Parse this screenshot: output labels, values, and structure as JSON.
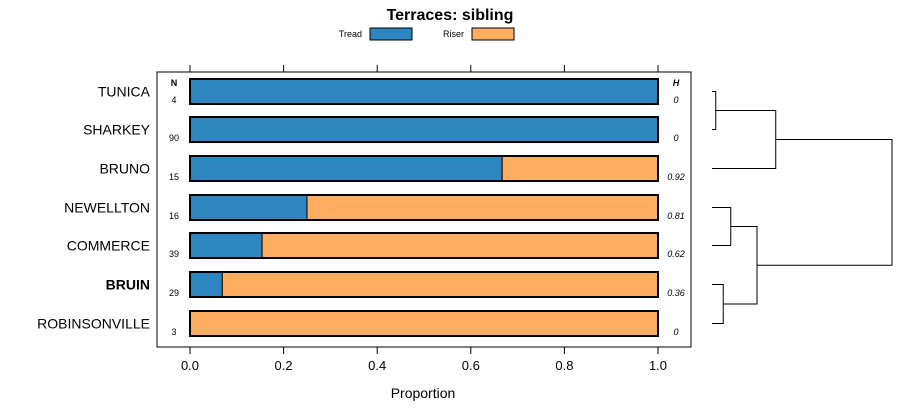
{
  "chart_data": {
    "type": "bar",
    "stacked": true,
    "orientation": "horizontal",
    "title": "Terraces: sibling",
    "xlabel": "Proportion",
    "xlim": [
      0,
      1
    ],
    "xticks": [
      "0.0",
      "0.2",
      "0.4",
      "0.6",
      "0.8",
      "1.0"
    ],
    "xtick_values": [
      0,
      0.2,
      0.4,
      0.6,
      0.8,
      1.0
    ],
    "n_header": "N",
    "h_header": "H",
    "legend": [
      {
        "name": "Tread",
        "color": "#2e86c1"
      },
      {
        "name": "Riser",
        "color": "#fdae61"
      }
    ],
    "categories": [
      "TUNICA",
      "SHARKEY",
      "BRUNO",
      "NEWELLTON",
      "COMMERCE",
      "BRUIN",
      "ROBINSONVILLE"
    ],
    "bold_category": "BRUIN",
    "n": [
      "4",
      "90",
      "15",
      "16",
      "39",
      "29",
      "3"
    ],
    "h": [
      "0",
      "0",
      "0.92",
      "0.81",
      "0.62",
      "0.36",
      "0"
    ],
    "series": [
      {
        "name": "Tread",
        "values": [
          1.0,
          1.0,
          0.667,
          0.25,
          0.154,
          0.069,
          0.0
        ]
      },
      {
        "name": "Riser",
        "values": [
          0.0,
          0.0,
          0.333,
          0.75,
          0.846,
          0.931,
          1.0
        ]
      }
    ],
    "dendrogram": {
      "type": "hierarchical-clustering",
      "leaf_order": [
        "TUNICA",
        "SHARKEY",
        "BRUNO",
        "NEWELLTON",
        "COMMERCE",
        "BRUIN",
        "ROBINSONVILLE"
      ],
      "merges": [
        {
          "children": [
            "TUNICA",
            "SHARKEY"
          ],
          "height": 0.05
        },
        {
          "children": [
            "NEWELLTON",
            "COMMERCE"
          ],
          "height": 0.25
        },
        {
          "children": [
            "BRUIN",
            "ROBINSONVILLE"
          ],
          "height": 0.15
        },
        {
          "children": [
            "TUNICA+SHARKEY",
            "BRUNO"
          ],
          "height": 0.85
        },
        {
          "children": [
            "NEWELLTON+COMMERCE",
            "BRUIN+ROBINSONVILLE"
          ],
          "height": 0.6
        },
        {
          "children": [
            "ALL-TOP",
            "ALL-BOTTOM"
          ],
          "height": 2.4
        }
      ]
    }
  }
}
